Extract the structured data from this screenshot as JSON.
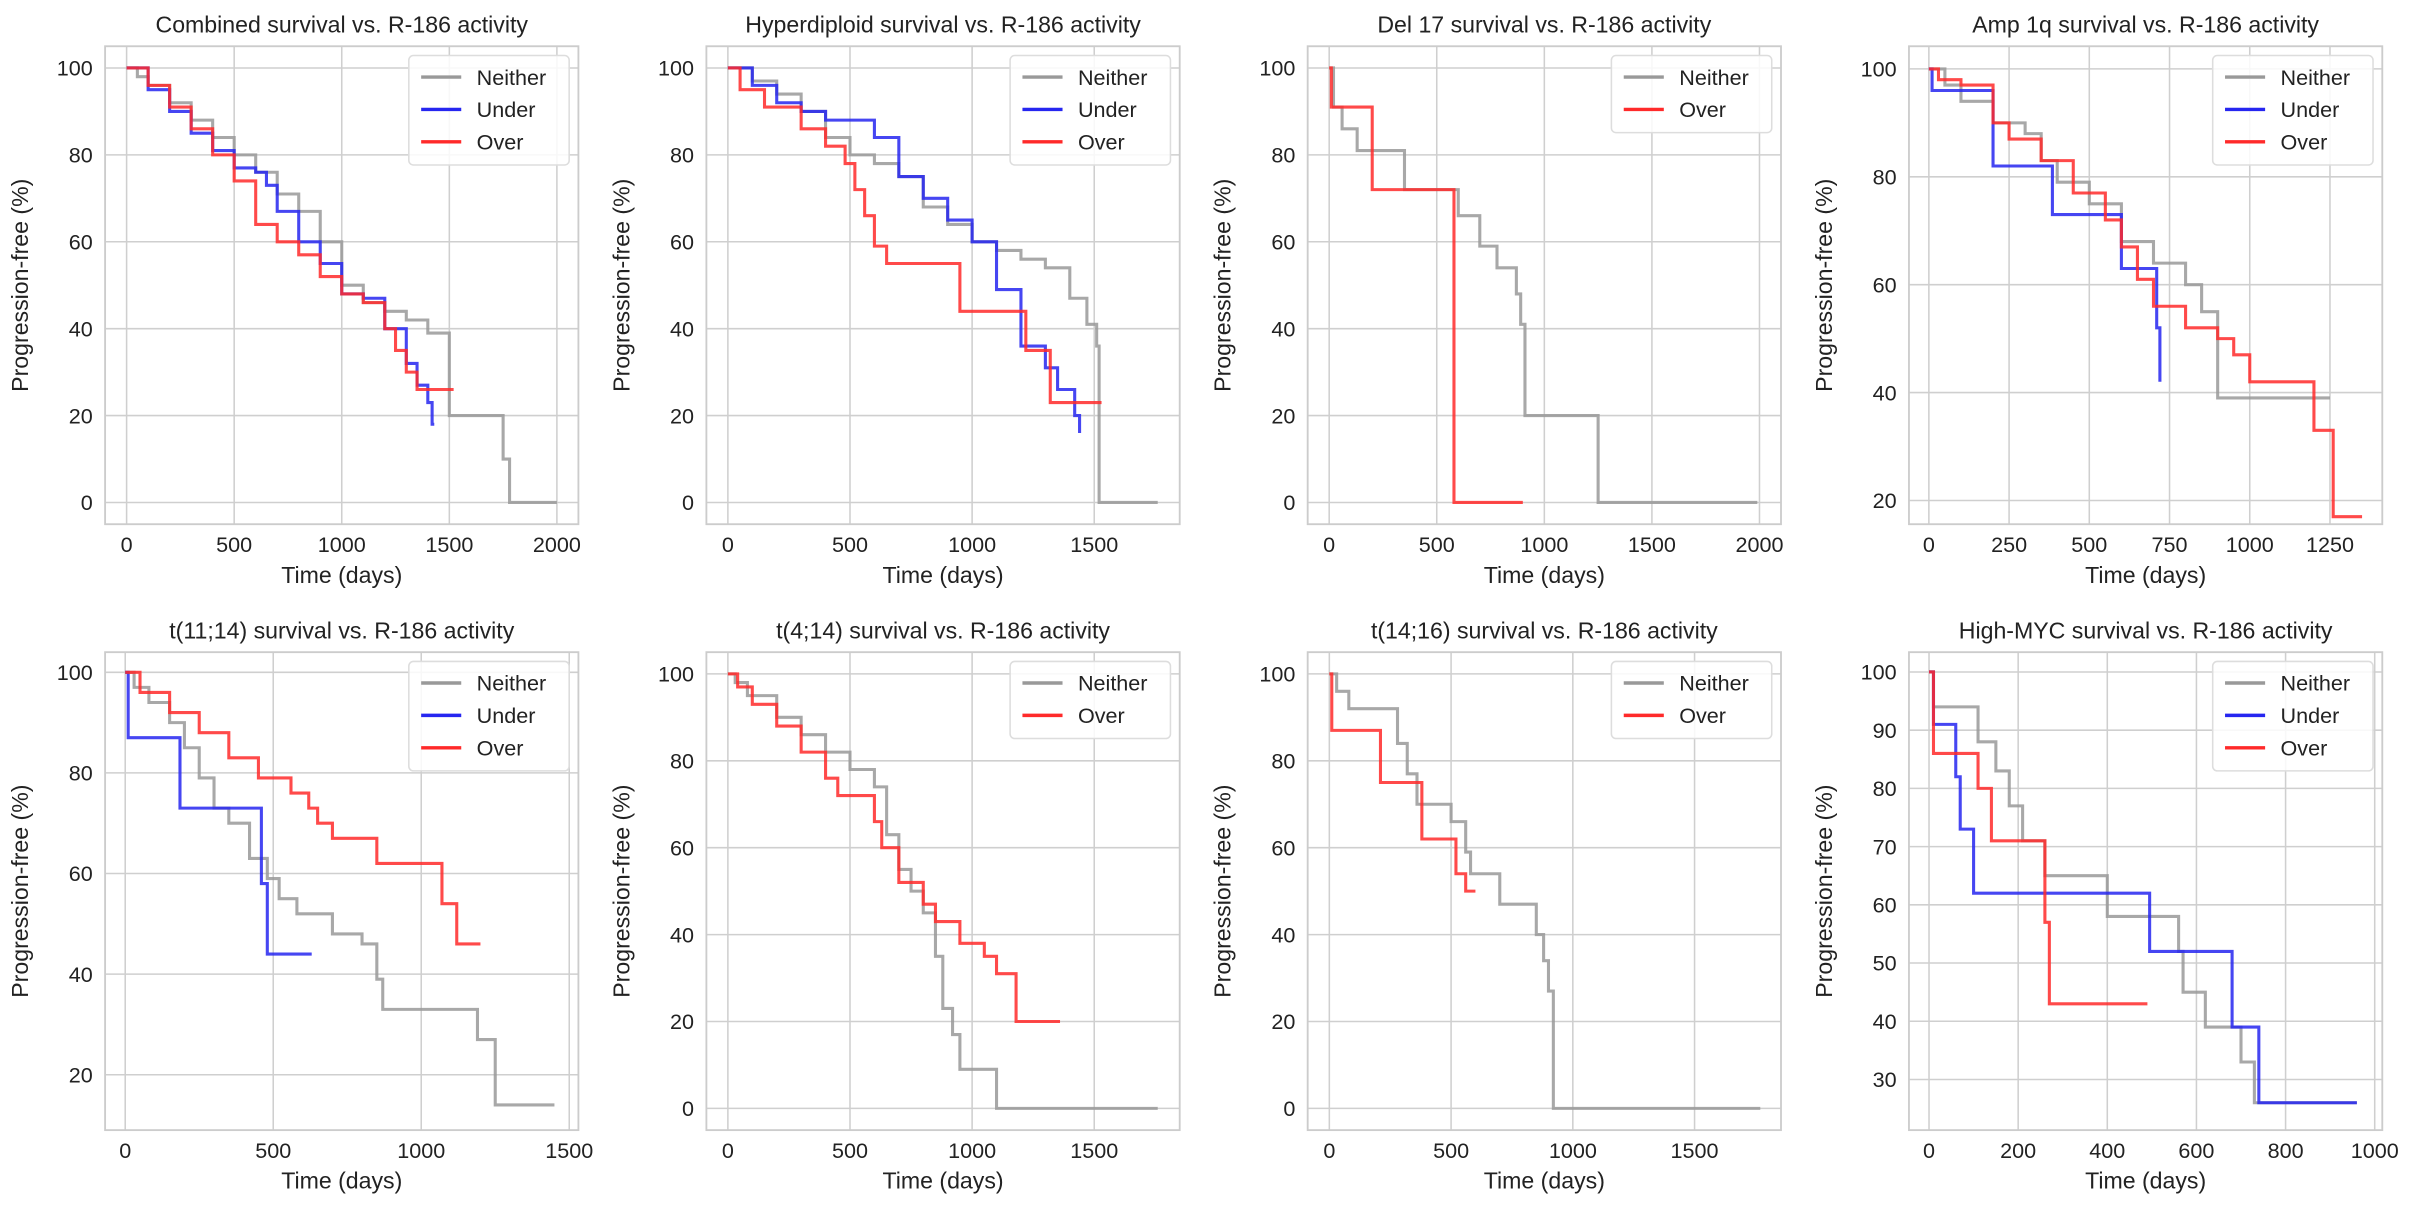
{
  "chart_data": [
    {
      "type": "step",
      "title": "Combined survival vs. R-186 activity",
      "xlabel": "Time (days)",
      "ylabel": "Progression-free (%)",
      "xlim": [
        -100,
        2100
      ],
      "ylim": [
        -5,
        105
      ],
      "xticks": [
        0,
        500,
        1000,
        1500,
        2000
      ],
      "yticks": [
        0,
        20,
        40,
        60,
        80,
        100
      ],
      "grid": true,
      "legend": "upper right",
      "series": [
        {
          "name": "Neither",
          "color": "#999999",
          "x": [
            0,
            50,
            100,
            200,
            300,
            400,
            500,
            600,
            700,
            800,
            900,
            1000,
            1100,
            1200,
            1300,
            1400,
            1500,
            1750,
            1780,
            2000
          ],
          "values": [
            100,
            98,
            96,
            92,
            88,
            84,
            80,
            76,
            71,
            67,
            60,
            50,
            46,
            44,
            42,
            39,
            20,
            10,
            0,
            0
          ]
        },
        {
          "name": "Under",
          "color": "#2626f0",
          "x": [
            0,
            100,
            200,
            300,
            400,
            500,
            600,
            650,
            700,
            800,
            900,
            1000,
            1100,
            1200,
            1300,
            1350,
            1400,
            1420,
            1430
          ],
          "values": [
            100,
            95,
            90,
            85,
            81,
            77,
            76,
            73,
            67,
            60,
            55,
            48,
            47,
            40,
            32,
            27,
            23,
            18,
            18
          ]
        },
        {
          "name": "Over",
          "color": "#ff2a2a",
          "x": [
            0,
            100,
            200,
            300,
            400,
            500,
            600,
            700,
            800,
            900,
            1000,
            1100,
            1200,
            1250,
            1300,
            1350,
            1520
          ],
          "values": [
            100,
            96,
            91,
            86,
            80,
            74,
            64,
            60,
            57,
            52,
            48,
            46,
            40,
            35,
            30,
            26,
            26
          ]
        }
      ]
    },
    {
      "type": "step",
      "title": "Hyperdiploid survival vs. R-186 activity",
      "xlabel": "Time (days)",
      "ylabel": "Progression-free (%)",
      "xlim": [
        -88,
        1850
      ],
      "ylim": [
        -5,
        105
      ],
      "xticks": [
        0,
        500,
        1000,
        1500
      ],
      "yticks": [
        0,
        20,
        40,
        60,
        80,
        100
      ],
      "grid": true,
      "legend": "upper right",
      "series": [
        {
          "name": "Neither",
          "color": "#999999",
          "x": [
            0,
            100,
            200,
            300,
            400,
            500,
            600,
            700,
            800,
            900,
            1000,
            1100,
            1200,
            1300,
            1400,
            1470,
            1510,
            1520,
            1760
          ],
          "values": [
            100,
            97,
            94,
            90,
            84,
            80,
            78,
            75,
            68,
            64,
            60,
            58,
            56,
            54,
            47,
            41,
            36,
            0,
            0
          ]
        },
        {
          "name": "Under",
          "color": "#2626f0",
          "x": [
            0,
            100,
            200,
            300,
            400,
            600,
            700,
            800,
            900,
            1000,
            1100,
            1200,
            1300,
            1350,
            1420,
            1440
          ],
          "values": [
            100,
            96,
            92,
            90,
            88,
            84,
            75,
            70,
            65,
            60,
            49,
            36,
            31,
            26,
            20,
            16
          ]
        },
        {
          "name": "Over",
          "color": "#ff2a2a",
          "x": [
            0,
            50,
            150,
            300,
            400,
            480,
            520,
            560,
            600,
            650,
            950,
            1220,
            1320,
            1530
          ],
          "values": [
            100,
            95,
            91,
            86,
            82,
            78,
            72,
            66,
            59,
            55,
            44,
            35,
            23,
            23
          ]
        }
      ]
    },
    {
      "type": "step",
      "title": "Del 17 survival vs. R-186 activity",
      "xlabel": "Time (days)",
      "ylabel": "Progression-free (%)",
      "xlim": [
        -100,
        2100
      ],
      "ylim": [
        -5,
        105
      ],
      "xticks": [
        0,
        500,
        1000,
        1500,
        2000
      ],
      "yticks": [
        0,
        20,
        40,
        60,
        80,
        100
      ],
      "grid": true,
      "legend": "upper right",
      "series": [
        {
          "name": "Neither",
          "color": "#999999",
          "x": [
            0,
            20,
            60,
            130,
            350,
            550,
            600,
            700,
            780,
            870,
            890,
            910,
            1250,
            1990
          ],
          "values": [
            100,
            91,
            86,
            81,
            72,
            72,
            66,
            59,
            54,
            48,
            41,
            20,
            0,
            0
          ]
        },
        {
          "name": "Over",
          "color": "#ff2a2a",
          "x": [
            0,
            10,
            200,
            580,
            900
          ],
          "values": [
            100,
            91,
            72,
            0,
            0
          ]
        }
      ]
    },
    {
      "type": "step",
      "title": "Amp 1q survival vs. R-186 activity",
      "xlabel": "Time (days)",
      "ylabel": "Progression-free (%)",
      "xlim": [
        -62,
        1413
      ],
      "ylim": [
        15.6,
        104.2
      ],
      "xticks": [
        0,
        250,
        500,
        750,
        1000,
        1250
      ],
      "yticks": [
        20,
        40,
        60,
        80,
        100
      ],
      "grid": true,
      "legend": "upper right",
      "series": [
        {
          "name": "Neither",
          "color": "#999999",
          "x": [
            0,
            50,
            100,
            200,
            300,
            350,
            400,
            500,
            600,
            700,
            800,
            850,
            900,
            1250
          ],
          "values": [
            100,
            97,
            94,
            90,
            88,
            83,
            79,
            75,
            68,
            64,
            60,
            55,
            39,
            39
          ]
        },
        {
          "name": "Under",
          "color": "#2626f0",
          "x": [
            0,
            10,
            120,
            200,
            380,
            385,
            490,
            600,
            700,
            710,
            720
          ],
          "values": [
            100,
            96,
            96,
            82,
            82,
            73,
            73,
            63,
            63,
            52,
            42
          ]
        },
        {
          "name": "Over",
          "color": "#ff2a2a",
          "x": [
            0,
            30,
            100,
            200,
            250,
            350,
            450,
            550,
            600,
            650,
            700,
            800,
            900,
            950,
            1000,
            1180,
            1200,
            1260,
            1350
          ],
          "values": [
            100,
            98,
            97,
            90,
            87,
            83,
            77,
            72,
            67,
            61,
            56,
            52,
            50,
            47,
            42,
            42,
            33,
            17,
            17
          ]
        }
      ]
    },
    {
      "type": "step",
      "title": "t(11;14) survival vs. R-186 activity",
      "xlabel": "Time (days)",
      "ylabel": "Progression-free (%)",
      "xlim": [
        -68,
        1531
      ],
      "ylim": [
        9,
        104
      ],
      "xticks": [
        0,
        500,
        1000,
        1500
      ],
      "yticks": [
        20,
        40,
        60,
        80,
        100
      ],
      "grid": true,
      "legend": "upper right",
      "series": [
        {
          "name": "Neither",
          "color": "#999999",
          "x": [
            0,
            30,
            80,
            150,
            200,
            250,
            300,
            350,
            420,
            480,
            520,
            580,
            700,
            800,
            850,
            870,
            1180,
            1190,
            1250,
            1450
          ],
          "values": [
            100,
            97,
            94,
            90,
            85,
            79,
            73,
            70,
            63,
            59,
            55,
            52,
            48,
            46,
            39,
            33,
            33,
            27,
            14,
            14
          ]
        },
        {
          "name": "Under",
          "color": "#2626f0",
          "x": [
            0,
            10,
            180,
            185,
            450,
            460,
            480,
            630
          ],
          "values": [
            100,
            87,
            87,
            73,
            73,
            58,
            44,
            44
          ]
        },
        {
          "name": "Over",
          "color": "#ff2a2a",
          "x": [
            0,
            50,
            150,
            250,
            350,
            450,
            560,
            620,
            650,
            700,
            850,
            1050,
            1070,
            1120,
            1200
          ],
          "values": [
            100,
            96,
            92,
            88,
            83,
            79,
            76,
            73,
            70,
            67,
            62,
            62,
            54,
            46,
            46
          ]
        }
      ]
    },
    {
      "type": "step",
      "title": "t(4;14) survival vs. R-186 activity",
      "xlabel": "Time (days)",
      "ylabel": "Progression-free (%)",
      "xlim": [
        -88,
        1850
      ],
      "ylim": [
        -5,
        105
      ],
      "xticks": [
        0,
        500,
        1000,
        1500
      ],
      "yticks": [
        0,
        20,
        40,
        60,
        80,
        100
      ],
      "grid": true,
      "legend": "upper right",
      "series": [
        {
          "name": "Neither",
          "color": "#999999",
          "x": [
            0,
            30,
            80,
            200,
            300,
            400,
            500,
            600,
            650,
            700,
            750,
            800,
            850,
            880,
            920,
            950,
            1100,
            1760
          ],
          "values": [
            100,
            98,
            95,
            90,
            86,
            82,
            78,
            74,
            63,
            55,
            50,
            45,
            35,
            23,
            17,
            9,
            0,
            0
          ]
        },
        {
          "name": "Over",
          "color": "#ff2a2a",
          "x": [
            0,
            40,
            100,
            200,
            300,
            400,
            450,
            600,
            630,
            700,
            800,
            850,
            950,
            1050,
            1100,
            1180,
            1360
          ],
          "values": [
            100,
            97,
            93,
            88,
            82,
            76,
            72,
            66,
            60,
            52,
            47,
            43,
            38,
            35,
            31,
            20,
            20
          ]
        }
      ]
    },
    {
      "type": "step",
      "title": "t(14;16) survival vs. R-186 activity",
      "xlabel": "Time (days)",
      "ylabel": "Progression-free (%)",
      "xlim": [
        -89,
        1855
      ],
      "ylim": [
        -5,
        105
      ],
      "xticks": [
        0,
        500,
        1000,
        1500
      ],
      "yticks": [
        0,
        20,
        40,
        60,
        80,
        100
      ],
      "grid": true,
      "legend": "upper right",
      "series": [
        {
          "name": "Neither",
          "color": "#999999",
          "x": [
            0,
            30,
            80,
            280,
            320,
            360,
            500,
            560,
            580,
            700,
            850,
            880,
            900,
            920,
            1770
          ],
          "values": [
            100,
            96,
            92,
            84,
            77,
            70,
            66,
            59,
            54,
            47,
            40,
            34,
            27,
            0,
            0
          ]
        },
        {
          "name": "Over",
          "color": "#ff2a2a",
          "x": [
            0,
            10,
            210,
            380,
            520,
            560,
            600
          ],
          "values": [
            100,
            87,
            75,
            62,
            54,
            50,
            50
          ]
        }
      ]
    },
    {
      "type": "step",
      "title": "High-MYC survival vs. R-186 activity",
      "xlabel": "Time (days)",
      "ylabel": "Progression-free (%)",
      "xlim": [
        -45,
        1017
      ],
      "ylim": [
        21.3,
        103.4
      ],
      "xticks": [
        0,
        200,
        400,
        600,
        800,
        1000
      ],
      "yticks": [
        30,
        40,
        50,
        60,
        70,
        80,
        90,
        100
      ],
      "grid": true,
      "legend": "upper right",
      "series": [
        {
          "name": "Neither",
          "color": "#999999",
          "x": [
            0,
            10,
            110,
            150,
            180,
            210,
            260,
            400,
            560,
            570,
            620,
            700,
            730,
            960
          ],
          "values": [
            100,
            94,
            88,
            83,
            77,
            71,
            65,
            58,
            52,
            45,
            39,
            33,
            26,
            26
          ]
        },
        {
          "name": "Under",
          "color": "#2626f0",
          "x": [
            0,
            10,
            60,
            70,
            100,
            490,
            495,
            670,
            680,
            740,
            960
          ],
          "values": [
            100,
            91,
            82,
            73,
            62,
            62,
            52,
            52,
            39,
            26,
            26
          ]
        },
        {
          "name": "Over",
          "color": "#ff2a2a",
          "x": [
            0,
            10,
            100,
            110,
            140,
            240,
            260,
            270,
            490
          ],
          "values": [
            100,
            86,
            86,
            80,
            71,
            71,
            57,
            43,
            43
          ]
        }
      ]
    }
  ]
}
